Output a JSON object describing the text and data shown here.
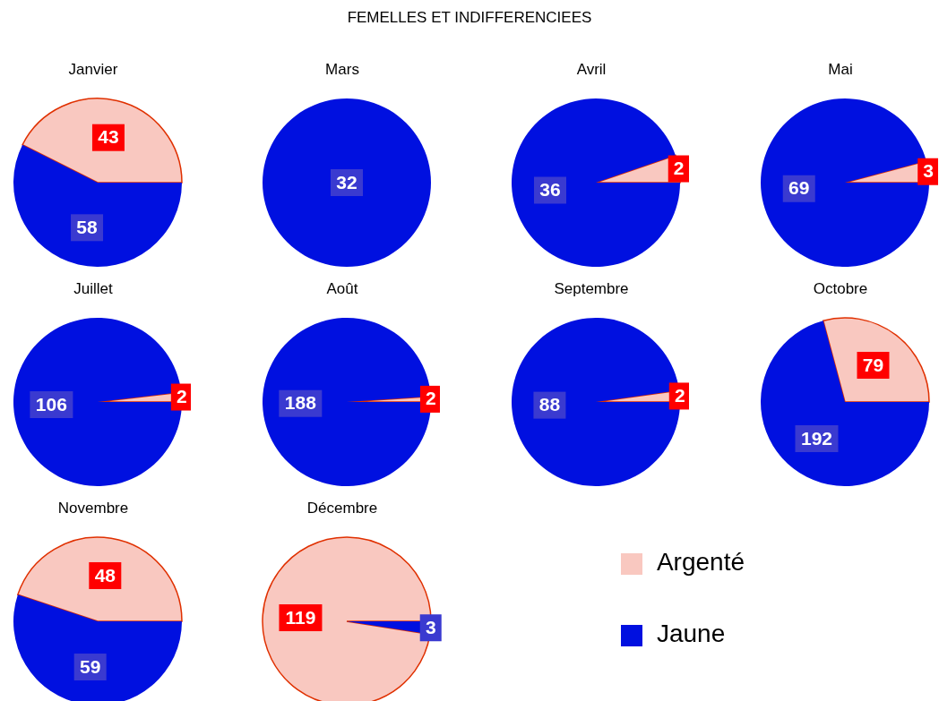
{
  "chart_data": [
    {
      "type": "other",
      "title": "FEMELLES ET INDIFFERENCIEES"
    },
    {
      "type": "pie",
      "title": "Janvier",
      "categories": [
        null,
        null
      ],
      "values": [
        43,
        58
      ],
      "colors": [
        "#f9c8c0",
        "#0010e0"
      ],
      "data_labels": true
    },
    {
      "type": "pie",
      "title": "Mars",
      "categories": [
        null,
        null
      ],
      "values": [
        null,
        32
      ],
      "colors": [
        "#f9c8c0",
        "#0010e0"
      ],
      "data_labels": true
    },
    {
      "type": "pie",
      "title": "Avril",
      "categories": [
        null,
        null
      ],
      "values": [
        2,
        36
      ],
      "colors": [
        "#f9c8c0",
        "#0010e0"
      ],
      "data_labels": true
    },
    {
      "type": "pie",
      "title": "Mai",
      "categories": [
        null,
        null
      ],
      "values": [
        3,
        69
      ],
      "colors": [
        "#f9c8c0",
        "#0010e0"
      ],
      "data_labels": true
    },
    {
      "type": "pie",
      "title": "Juillet",
      "categories": [
        null,
        null
      ],
      "values": [
        2,
        106
      ],
      "colors": [
        "#f9c8c0",
        "#0010e0"
      ],
      "data_labels": true
    },
    {
      "type": "pie",
      "title": "Août",
      "categories": [
        null,
        null
      ],
      "values": [
        2,
        188
      ],
      "colors": [
        "#f9c8c0",
        "#0010e0"
      ],
      "data_labels": true
    },
    {
      "type": "pie",
      "title": "Septembre",
      "categories": [
        null,
        null
      ],
      "values": [
        2,
        88
      ],
      "colors": [
        "#f9c8c0",
        "#0010e0"
      ],
      "data_labels": true
    },
    {
      "type": "pie",
      "title": "Octobre",
      "categories": [
        null,
        null
      ],
      "values": [
        79,
        192
      ],
      "colors": [
        "#f9c8c0",
        "#0010e0"
      ],
      "data_labels": true
    },
    {
      "type": "pie",
      "title": "Novembre",
      "categories": [
        null,
        null
      ],
      "values": [
        48,
        59
      ],
      "colors": [
        "#f9c8c0",
        "#0010e0"
      ],
      "data_labels": true
    },
    {
      "type": "pie",
      "title": "Décembre",
      "categories": [
        "Argenté",
        "Jaune"
      ],
      "values": [
        119,
        3
      ],
      "colors": [
        "#f9c8c0",
        "#0010e0"
      ],
      "data_labels": true,
      "legend": "right"
    }
  ]
}
